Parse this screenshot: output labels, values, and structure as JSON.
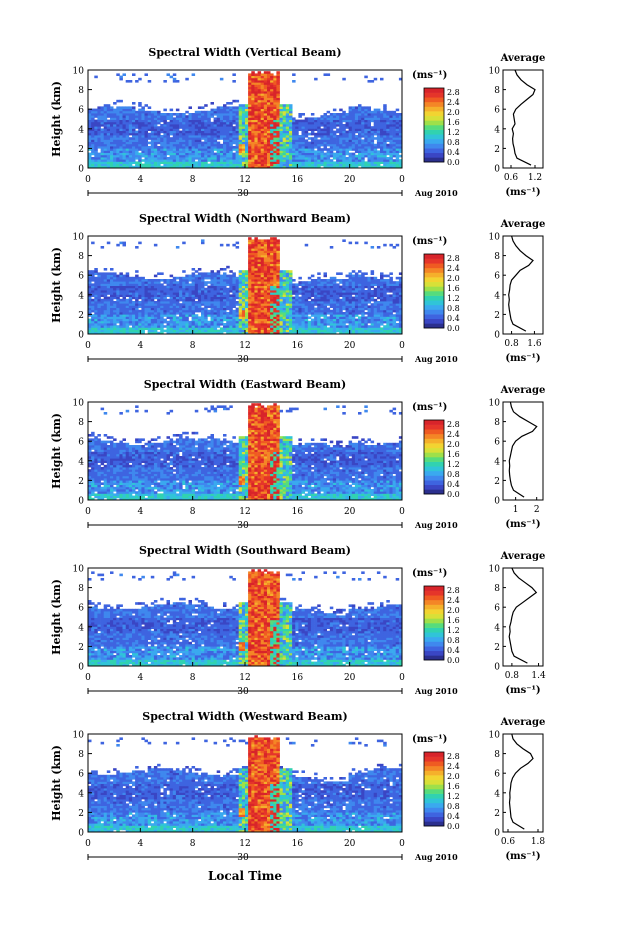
{
  "figure": {
    "bottom_xlabel": "Local Time"
  },
  "colorbar": {
    "unit": "(ms⁻¹)",
    "ticks": [
      "2.8",
      "2.4",
      "2.0",
      "1.6",
      "1.2",
      "0.8",
      "0.4",
      "0.0"
    ],
    "colors": [
      "#2b2f8e",
      "#3a46c4",
      "#3e64e0",
      "#3f88ee",
      "#3aa9ef",
      "#30c4d8",
      "#31d2b0",
      "#56dc7c",
      "#9ee04a",
      "#d8e038",
      "#f2d431",
      "#f5b02b",
      "#f48626",
      "#ef5b22",
      "#e5352a",
      "#d8242a"
    ]
  },
  "chart_data": [
    {
      "type": "heatmap",
      "title": "Spectral Width (Vertical Beam)",
      "ylabel": "Height (km)",
      "xticks": [
        "0",
        "4",
        "8",
        "12",
        "16",
        "20",
        "0"
      ],
      "date_label": "30",
      "date_suffix": "Aug 2010",
      "xlim": [
        0,
        24
      ],
      "ylim": [
        0,
        10
      ],
      "yticks": [
        "0",
        "2",
        "4",
        "6",
        "8",
        "10"
      ],
      "profile": {
        "title": "Average",
        "xlabel": "(ms⁻¹)",
        "xticks": [
          "0.6",
          "1.2"
        ],
        "xlim": [
          0.4,
          1.4
        ],
        "heights": [
          0.3,
          1.0,
          1.5,
          2.0,
          2.5,
          3.0,
          3.5,
          4.0,
          4.5,
          5.0,
          5.5,
          6.0,
          6.5,
          7.0,
          7.5,
          8.0,
          8.5,
          9.0,
          9.5,
          10.0
        ],
        "values": [
          1.1,
          0.75,
          0.7,
          0.68,
          0.65,
          0.64,
          0.66,
          0.63,
          0.7,
          0.68,
          0.66,
          0.72,
          0.85,
          1.0,
          1.15,
          1.2,
          1.0,
          0.85,
          0.75,
          0.7
        ]
      }
    },
    {
      "type": "heatmap",
      "title": "Spectral Width (Northward Beam)",
      "ylabel": "Height (km)",
      "xticks": [
        "0",
        "4",
        "8",
        "12",
        "16",
        "20",
        "0"
      ],
      "date_label": "30",
      "date_suffix": "Aug 2010",
      "xlim": [
        0,
        24
      ],
      "ylim": [
        0,
        10
      ],
      "yticks": [
        "0",
        "2",
        "4",
        "6",
        "8",
        "10"
      ],
      "profile": {
        "title": "Average",
        "xlabel": "(ms⁻¹)",
        "xticks": [
          "0.8",
          "1.6"
        ],
        "xlim": [
          0.5,
          1.9
        ],
        "heights": [
          0.3,
          1.0,
          1.5,
          2.0,
          2.5,
          3.0,
          3.5,
          4.0,
          4.5,
          5.0,
          5.5,
          6.0,
          6.5,
          7.0,
          7.5,
          8.0,
          8.5,
          9.0,
          9.5,
          10.0
        ],
        "values": [
          1.3,
          0.85,
          0.78,
          0.75,
          0.72,
          0.7,
          0.72,
          0.7,
          0.73,
          0.75,
          0.8,
          0.95,
          1.1,
          1.4,
          1.55,
          1.3,
          1.1,
          0.95,
          0.85,
          0.8
        ]
      }
    },
    {
      "type": "heatmap",
      "title": "Spectral Width (Eastward Beam)",
      "ylabel": "Height (km)",
      "xticks": [
        "0",
        "4",
        "8",
        "12",
        "16",
        "20",
        "0"
      ],
      "date_label": "30",
      "date_suffix": "Aug 2010",
      "xlim": [
        0,
        24
      ],
      "ylim": [
        0,
        10
      ],
      "yticks": [
        "0",
        "2",
        "4",
        "6",
        "8",
        "10"
      ],
      "profile": {
        "title": "Average",
        "xlabel": "(ms⁻¹)",
        "xticks": [
          "1",
          "2"
        ],
        "xlim": [
          0.4,
          2.3
        ],
        "heights": [
          0.3,
          1.0,
          1.5,
          2.0,
          2.5,
          3.0,
          3.5,
          4.0,
          4.5,
          5.0,
          5.5,
          6.0,
          6.5,
          7.0,
          7.5,
          8.0,
          8.5,
          9.0,
          9.5,
          10.0
        ],
        "values": [
          1.4,
          0.9,
          0.8,
          0.75,
          0.72,
          0.7,
          0.72,
          0.7,
          0.75,
          0.8,
          0.85,
          1.0,
          1.3,
          1.8,
          2.0,
          1.6,
          1.2,
          0.9,
          0.8,
          0.75
        ]
      }
    },
    {
      "type": "heatmap",
      "title": "Spectral Width (Southward Beam)",
      "ylabel": "Height (km)",
      "xticks": [
        "0",
        "4",
        "8",
        "12",
        "16",
        "20",
        "0"
      ],
      "date_label": "30",
      "date_suffix": "Aug 2010",
      "xlim": [
        0,
        24
      ],
      "ylim": [
        0,
        10
      ],
      "yticks": [
        "0",
        "2",
        "4",
        "6",
        "8",
        "10"
      ],
      "profile": {
        "title": "Average",
        "xlabel": "(ms⁻¹)",
        "xticks": [
          "0.8",
          "1.4"
        ],
        "xlim": [
          0.6,
          1.5
        ],
        "heights": [
          0.3,
          1.0,
          1.5,
          2.0,
          2.5,
          3.0,
          3.5,
          4.0,
          4.5,
          5.0,
          5.5,
          6.0,
          6.5,
          7.0,
          7.5,
          8.0,
          8.5,
          9.0,
          9.5,
          10.0
        ],
        "values": [
          1.15,
          0.85,
          0.8,
          0.78,
          0.76,
          0.74,
          0.76,
          0.75,
          0.78,
          0.8,
          0.83,
          0.9,
          1.05,
          1.2,
          1.35,
          1.25,
          1.1,
          0.95,
          0.85,
          0.8
        ]
      }
    },
    {
      "type": "heatmap",
      "title": "Spectral Width (Westward Beam)",
      "ylabel": "Height (km)",
      "xticks": [
        "0",
        "4",
        "8",
        "12",
        "16",
        "20",
        "0"
      ],
      "date_label": "30",
      "date_suffix": "Aug 2010",
      "xlim": [
        0,
        24
      ],
      "ylim": [
        0,
        10
      ],
      "yticks": [
        "0",
        "2",
        "4",
        "6",
        "8",
        "10"
      ],
      "profile": {
        "title": "Average",
        "xlabel": "(ms⁻¹)",
        "xticks": [
          "0.6",
          "1.8"
        ],
        "xlim": [
          0.4,
          2.0
        ],
        "heights": [
          0.3,
          1.0,
          1.5,
          2.0,
          2.5,
          3.0,
          3.5,
          4.0,
          4.5,
          5.0,
          5.5,
          6.0,
          6.5,
          7.0,
          7.5,
          8.0,
          8.5,
          9.0,
          9.5,
          10.0
        ],
        "values": [
          1.25,
          0.8,
          0.72,
          0.7,
          0.68,
          0.66,
          0.68,
          0.67,
          0.7,
          0.72,
          0.78,
          0.9,
          1.1,
          1.4,
          1.6,
          1.5,
          1.2,
          0.95,
          0.8,
          0.75
        ]
      }
    }
  ]
}
